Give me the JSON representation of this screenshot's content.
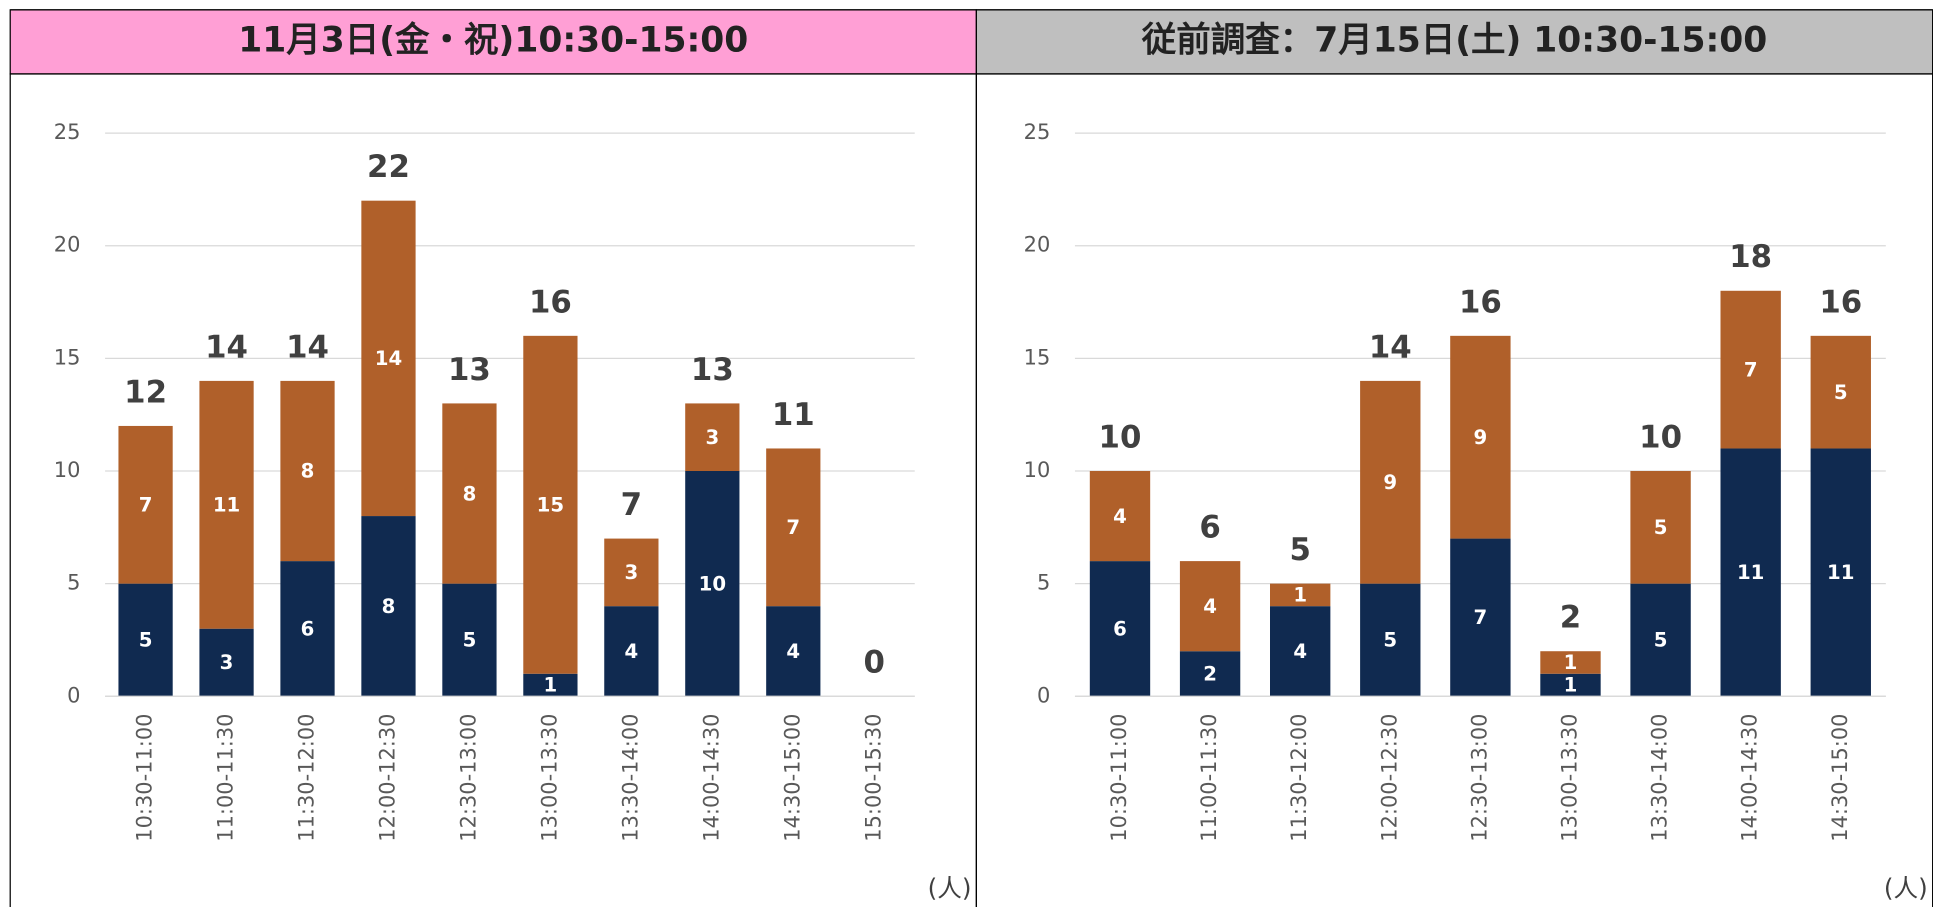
{
  "chart_data": [
    {
      "type": "bar",
      "stacked": true,
      "title": "11月3日(金・祝)10:30-15:00",
      "header_color": "#ff9fd5",
      "unit_label": "(人)",
      "categories": [
        "10:30-11:00",
        "11:00-11:30",
        "11:30-12:00",
        "12:00-12:30",
        "12:30-13:00",
        "13:00-13:30",
        "13:30-14:00",
        "14:00-14:30",
        "14:30-15:00",
        "15:00-15:30"
      ],
      "series": [
        {
          "color": "#102a50",
          "values": [
            5,
            3,
            6,
            8,
            5,
            1,
            4,
            10,
            4,
            null
          ]
        },
        {
          "color": "#b0602a",
          "values": [
            7,
            11,
            8,
            14,
            8,
            15,
            3,
            3,
            7,
            null
          ]
        }
      ],
      "totals": [
        12,
        14,
        14,
        22,
        13,
        16,
        7,
        13,
        11,
        0
      ],
      "ylim": [
        0,
        25
      ],
      "yticks": [
        0,
        5,
        10,
        15,
        20,
        25
      ],
      "grid": true
    },
    {
      "type": "bar",
      "stacked": true,
      "title": "従前調査：7月15日(土) 10:30-15:00",
      "header_color": "#bfbfbf",
      "unit_label": "(人)",
      "categories": [
        "10:30-11:00",
        "11:00-11:30",
        "11:30-12:00",
        "12:00-12:30",
        "12:30-13:00",
        "13:00-13:30",
        "13:30-14:00",
        "14:00-14:30",
        "14:30-15:00"
      ],
      "series": [
        {
          "color": "#102a50",
          "values": [
            6,
            2,
            4,
            5,
            7,
            1,
            5,
            11,
            11
          ]
        },
        {
          "color": "#b0602a",
          "values": [
            4,
            4,
            1,
            9,
            9,
            1,
            5,
            7,
            5
          ]
        }
      ],
      "totals": [
        10,
        6,
        5,
        14,
        16,
        2,
        10,
        18,
        16
      ],
      "ylim": [
        0,
        25
      ],
      "yticks": [
        0,
        5,
        10,
        15,
        20,
        25
      ],
      "grid": true
    }
  ]
}
